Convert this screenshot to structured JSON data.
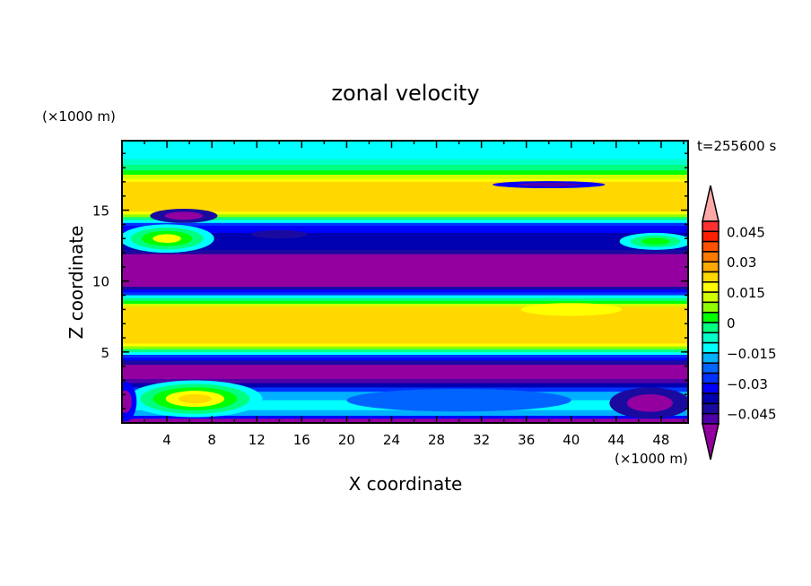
{
  "chart_data": {
    "type": "heatmap",
    "subtype": "filled-contour",
    "title": "zonal velocity",
    "xlabel": "X coordinate",
    "ylabel": "Z coordinate",
    "x_unit_label": "(×1000 m)",
    "y_unit_label": "(×1000 m)",
    "time_label": "t=255600 s",
    "xlim": [
      0,
      50.4
    ],
    "ylim": [
      0,
      19.9
    ],
    "xticks": [
      4,
      8,
      12,
      16,
      20,
      24,
      28,
      32,
      36,
      40,
      44,
      48
    ],
    "yticks": [
      5,
      10,
      15
    ],
    "colorbar": {
      "levels_min": -0.0525,
      "levels_step": 0.0075,
      "labels": [
        "0.045",
        "0.03",
        "0.015",
        "0",
        "−0.015",
        "−0.03",
        "−0.045"
      ],
      "colors": [
        "#ff3030",
        "#ff2000",
        "#ff5000",
        "#ff7800",
        "#ffa800",
        "#ffd800",
        "#ffff00",
        "#d0ff00",
        "#90ff00",
        "#00ff00",
        "#00ff80",
        "#00ffc8",
        "#00ffff",
        "#00b0ff",
        "#0064ff",
        "#0032ff",
        "#0000ff",
        "#0000b0",
        "#1a0aa0",
        "#5000a8"
      ],
      "over_color": "#ffa8a8",
      "under_color": "#9400a0"
    },
    "profile": [
      [
        19.9,
        0.006
      ],
      [
        18.6,
        0.012
      ],
      [
        18.2,
        0.02
      ],
      [
        17.8,
        0.03
      ],
      [
        17.5,
        0.04
      ],
      [
        17.2,
        0.05
      ],
      [
        17.0,
        0.06
      ],
      [
        14.9,
        0.046
      ],
      [
        14.7,
        0.032
      ],
      [
        14.5,
        0.016
      ],
      [
        14.3,
        0.0
      ],
      [
        14.1,
        -0.016
      ],
      [
        13.9,
        -0.028
      ],
      [
        13.4,
        -0.036
      ],
      [
        12.2,
        -0.042
      ],
      [
        11.9,
        -0.06
      ],
      [
        9.6,
        -0.044
      ],
      [
        9.4,
        -0.03
      ],
      [
        9.2,
        -0.016
      ],
      [
        9.0,
        0.0
      ],
      [
        8.8,
        0.016
      ],
      [
        8.6,
        0.03
      ],
      [
        8.4,
        0.044
      ],
      [
        8.2,
        0.06
      ],
      [
        5.6,
        0.046
      ],
      [
        5.4,
        0.032
      ],
      [
        5.2,
        0.016
      ],
      [
        5.0,
        0.0
      ],
      [
        4.8,
        -0.016
      ],
      [
        4.6,
        -0.03
      ],
      [
        4.4,
        -0.044
      ],
      [
        4.1,
        -0.06
      ],
      [
        3.1,
        -0.046
      ],
      [
        2.8,
        -0.032
      ],
      [
        2.5,
        -0.016
      ],
      [
        2.2,
        -0.004
      ],
      [
        1.6,
        0.006
      ],
      [
        0.9,
        -0.004
      ],
      [
        0.5,
        -0.03
      ],
      [
        0.3,
        -0.06
      ],
      [
        0.0,
        -0.06
      ]
    ],
    "blobs": [
      {
        "x": 6.5,
        "z": 1.7,
        "rx": 6.0,
        "rz": 1.3,
        "values": [
          0.0,
          0.015,
          0.03,
          0.045,
          0.06
        ]
      },
      {
        "x": 0.3,
        "z": 1.5,
        "rx": 1.0,
        "rz": 1.4,
        "values": [
          -0.03,
          -0.06
        ]
      },
      {
        "x": 47,
        "z": 1.4,
        "rx": 3.6,
        "rz": 1.1,
        "values": [
          -0.045,
          -0.06
        ]
      },
      {
        "x": 30,
        "z": 1.6,
        "rx": 10,
        "rz": 0.8,
        "values": [
          -0.012
        ]
      },
      {
        "x": 4,
        "z": 13.0,
        "rx": 4.2,
        "rz": 1.0,
        "values": [
          0.0,
          0.015,
          0.03,
          0.045
        ]
      },
      {
        "x": 5.5,
        "z": 14.6,
        "rx": 3.0,
        "rz": 0.5,
        "values": [
          -0.045,
          -0.06
        ]
      },
      {
        "x": 47.5,
        "z": 12.8,
        "rx": 3.2,
        "rz": 0.6,
        "values": [
          0.0,
          0.015,
          0.025
        ]
      },
      {
        "x": 38,
        "z": 16.8,
        "rx": 5,
        "rz": 0.25,
        "values": [
          -0.03,
          -0.05
        ]
      },
      {
        "x": 14,
        "z": 13.3,
        "rx": 2.5,
        "rz": 0.3,
        "values": [
          -0.045
        ]
      },
      {
        "x": 40,
        "z": 8.0,
        "rx": 4.5,
        "rz": 0.45,
        "values": [
          0.045
        ]
      }
    ]
  }
}
